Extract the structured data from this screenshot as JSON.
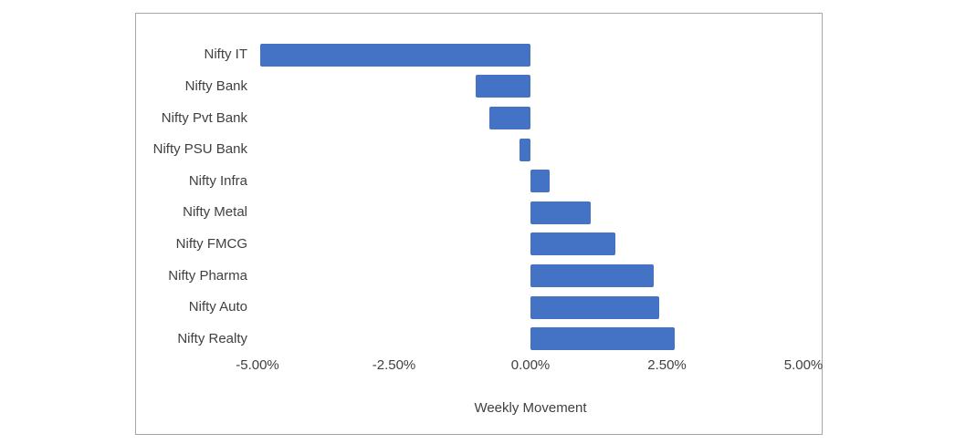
{
  "page": {
    "background_color": "#ffffff"
  },
  "chart_frame": {
    "border_color": "#a6a6a6",
    "background_color": "#ffffff"
  },
  "chart_data": {
    "type": "bar",
    "orientation": "horizontal",
    "title": "",
    "xlabel": "Weekly Movement",
    "ylabel": "",
    "categories": [
      "Nifty IT",
      "Nifty Bank",
      "Nifty Pvt Bank",
      "Nifty PSU Bank",
      "Nifty Infra",
      "Nifty Metal",
      "Nifty FMCG",
      "Nifty Pharma",
      "Nifty Auto",
      "Nifty Realty"
    ],
    "values": [
      -4.95,
      -1.0,
      -0.75,
      -0.2,
      0.35,
      1.1,
      1.55,
      2.25,
      2.35,
      2.65
    ],
    "value_unit": "%",
    "xlim": [
      -5,
      5
    ],
    "x_ticks": [
      {
        "value": -5,
        "label": "-5.00%"
      },
      {
        "value": -2.5,
        "label": "-2.50%"
      },
      {
        "value": 0,
        "label": "0.00%"
      },
      {
        "value": 2.5,
        "label": "2.50%"
      },
      {
        "value": 5,
        "label": "5.00%"
      }
    ],
    "bar_color": "#4472C4",
    "grid": false,
    "legend": false
  }
}
